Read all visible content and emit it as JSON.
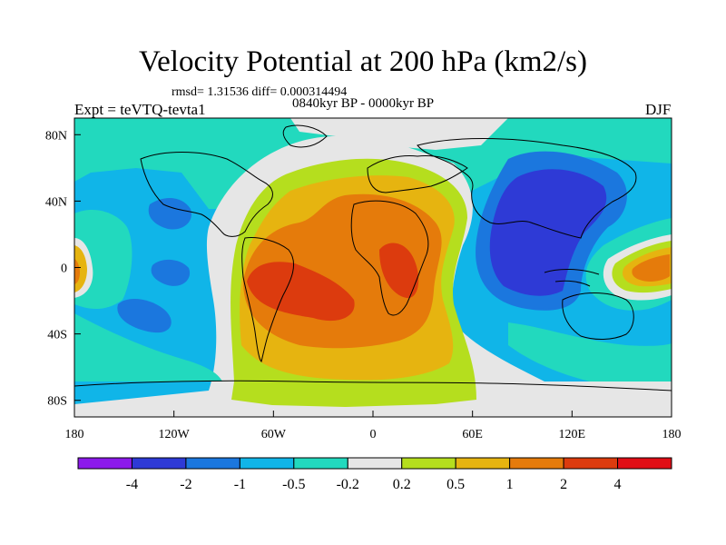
{
  "header": {
    "title": "Velocity Potential at 200 hPa (km2/s)",
    "stats": "rmsd= 1.31536 diff= 0.000314494",
    "period": "0840kyr BP - 0000kyr BP",
    "experiment": "Expt = teVTQ-tevta1",
    "season": "DJF"
  },
  "axes": {
    "lat_labels": [
      {
        "value": 80,
        "text": "80N"
      },
      {
        "value": 40,
        "text": "40N"
      },
      {
        "value": 0,
        "text": "0"
      },
      {
        "value": -40,
        "text": "40S"
      },
      {
        "value": -80,
        "text": "80S"
      }
    ],
    "lon_labels": [
      {
        "value": -180,
        "text": "180"
      },
      {
        "value": -120,
        "text": "120W"
      },
      {
        "value": -60,
        "text": "60W"
      },
      {
        "value": 0,
        "text": "0"
      },
      {
        "value": 60,
        "text": "60E"
      },
      {
        "value": 120,
        "text": "120E"
      },
      {
        "value": 180,
        "text": "180"
      }
    ]
  },
  "colorbar": {
    "colors": [
      "#8c1aeb",
      "#2e3ad6",
      "#1b77de",
      "#10b5e8",
      "#22d9be",
      "#e6e6e6",
      "#b5de1e",
      "#e6b410",
      "#e57b0b",
      "#dc3b0e",
      "#e10e16"
    ],
    "labels": [
      "-4",
      "-2",
      "-1",
      "-0.5",
      "-0.2",
      "0.2",
      "0.5",
      "1",
      "2",
      "4"
    ]
  },
  "field": {
    "level_colors": {
      "neg4": "#8c1aeb",
      "neg2": "#2e3ad6",
      "neg1": "#1b77de",
      "neg05": "#10b5e8",
      "neg02": "#22d9be",
      "zero": "#e6e6e6",
      "pos02": "#b5de1e",
      "pos05": "#e6b410",
      "pos1": "#e57b0b",
      "pos2": "#dc3b0e",
      "pos4": "#e10e16"
    }
  }
}
